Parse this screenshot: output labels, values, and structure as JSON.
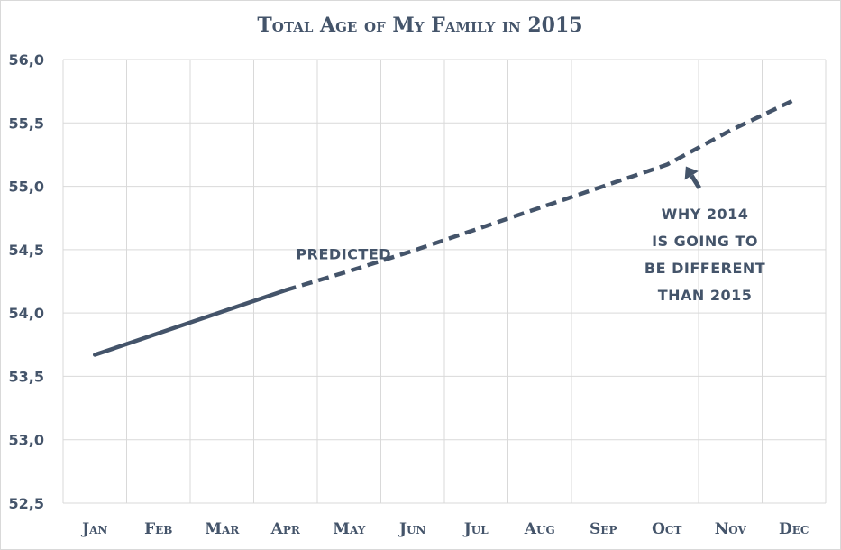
{
  "chart_data": {
    "type": "line",
    "title": "Total Age of My Family in 2015",
    "categories": [
      "Jan",
      "Feb",
      "Mar",
      "Apr",
      "May",
      "Jun",
      "Jul",
      "Aug",
      "Sep",
      "Oct",
      "Nov",
      "Dec"
    ],
    "y_tick_labels": [
      "52,5",
      "53,0",
      "53,5",
      "54,0",
      "54,5",
      "55,0",
      "55,5",
      "56,0"
    ],
    "ylim": [
      52.5,
      56.0
    ],
    "grid": true,
    "series": [
      {
        "values": [
          53.67,
          53.84,
          54.01,
          54.18,
          54.33,
          54.49,
          54.66,
          54.83,
          55.0,
          55.17,
          55.44,
          55.68
        ],
        "solid_through_index": 3,
        "color": "#44546a"
      }
    ],
    "annotations": [
      {
        "text": "PREDICTED",
        "category_index": 4,
        "value": 54.46
      },
      {
        "lines": [
          "WHY 2014",
          "IS GOING TO",
          "BE DIFFERENT",
          "THAN 2015"
        ],
        "arrow_to_category_index": 9.3,
        "arrow_to_value": 55.1
      }
    ]
  }
}
